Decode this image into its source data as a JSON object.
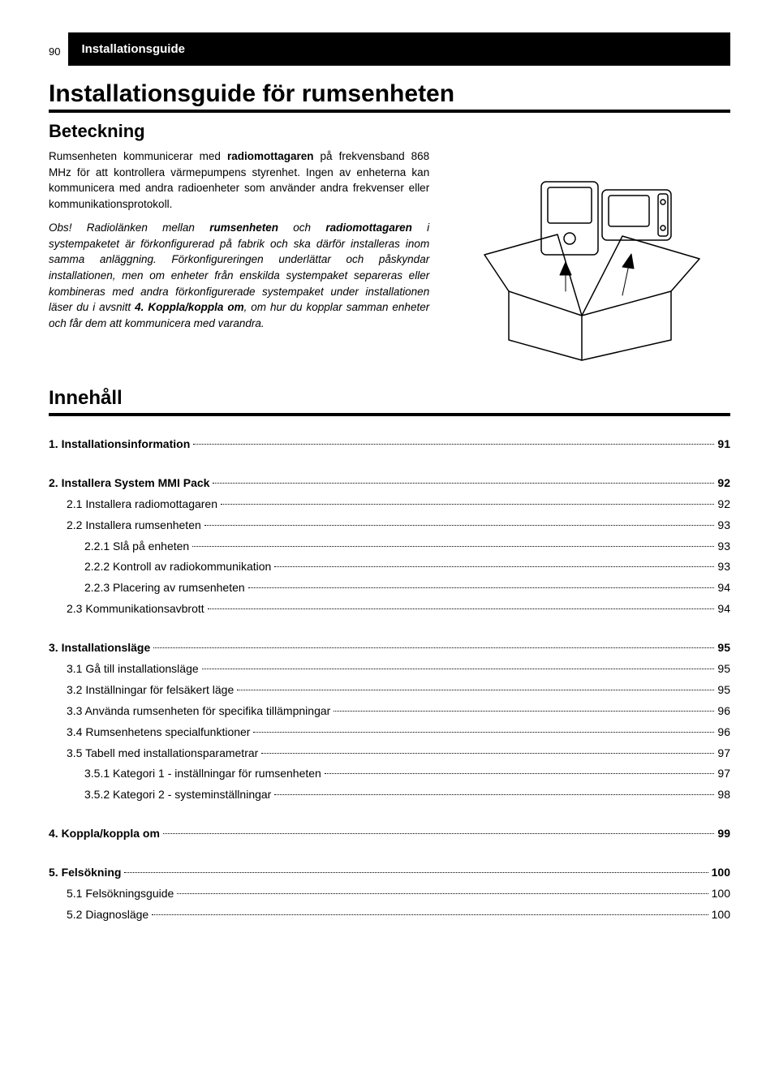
{
  "page_number": "90",
  "header_band": "Installationsguide",
  "main_title": "Installationsguide för rumsenheten",
  "subheading": "Beteckning",
  "para1_pre": "Rumsenheten kommunicerar med ",
  "para1_bold": "radiomottagaren",
  "para1_post": " på frekvensband 868 MHz för att kontrollera värmepumpens styrenhet. Ingen av enheterna kan kommunicera med andra radioenheter som använder andra frekvenser eller kommunikationsprotokoll.",
  "para2_a": "Obs! Radiolänken mellan ",
  "para2_b": "rumsenheten",
  "para2_c": " och ",
  "para2_d": "radiomottagaren",
  "para2_e": " i systempaketet är förkonfigurerad på fabrik och ska därför installeras inom samma anläggning. Förkonfigureringen underlättar och påskyndar installationen, men om enheter från enskilda systempaket separeras eller kombineras med andra förkonfigurerade systempaket under installationen läser du i avsnitt ",
  "para2_f": "4. Koppla/koppla om",
  "para2_g": ", om hur du kopplar samman enheter och får dem att kommunicera med varandra.",
  "contents_heading": "Innehåll",
  "toc": [
    {
      "group": [
        {
          "level": 0,
          "label": "1. Installationsinformation",
          "page": "91"
        }
      ]
    },
    {
      "group": [
        {
          "level": 0,
          "label": "2. Installera System MMI Pack",
          "page": "92"
        },
        {
          "level": 1,
          "label": "2.1 Installera radiomottagaren",
          "page": "92"
        },
        {
          "level": 1,
          "label": "2.2 Installera rumsenheten",
          "page": "93"
        },
        {
          "level": 2,
          "label": "2.2.1 Slå på enheten",
          "page": "93"
        },
        {
          "level": 2,
          "label": "2.2.2 Kontroll av radiokommunikation",
          "page": "93"
        },
        {
          "level": 2,
          "label": "2.2.3 Placering av rumsenheten",
          "page": "94"
        },
        {
          "level": 1,
          "label": "2.3 Kommunikationsavbrott",
          "page": "94"
        }
      ]
    },
    {
      "group": [
        {
          "level": 0,
          "label": "3. Installationsläge",
          "page": "95"
        },
        {
          "level": 1,
          "label": "3.1 Gå till installationsläge",
          "page": "95"
        },
        {
          "level": 1,
          "label": "3.2 Inställningar för felsäkert läge",
          "page": "95"
        },
        {
          "level": 1,
          "label": "3.3 Använda rumsenheten för specifika tillämpningar",
          "page": "96"
        },
        {
          "level": 1,
          "label": "3.4 Rumsenhetens specialfunktioner",
          "page": "96"
        },
        {
          "level": 1,
          "label": "3.5 Tabell med installationsparametrar",
          "page": "97"
        },
        {
          "level": 2,
          "label": "3.5.1 Kategori 1 - inställningar för rumsenheten",
          "page": "97"
        },
        {
          "level": 2,
          "label": "3.5.2 Kategori 2 - systeminställningar",
          "page": "98"
        }
      ]
    },
    {
      "group": [
        {
          "level": 0,
          "label": "4. Koppla/koppla om",
          "page": "99"
        }
      ]
    },
    {
      "group": [
        {
          "level": 0,
          "label": "5. Felsökning",
          "page": "100"
        },
        {
          "level": 1,
          "label": "5.1 Felsökningsguide",
          "page": "100"
        },
        {
          "level": 1,
          "label": "5.2 Diagnosläge",
          "page": "100"
        }
      ]
    }
  ]
}
